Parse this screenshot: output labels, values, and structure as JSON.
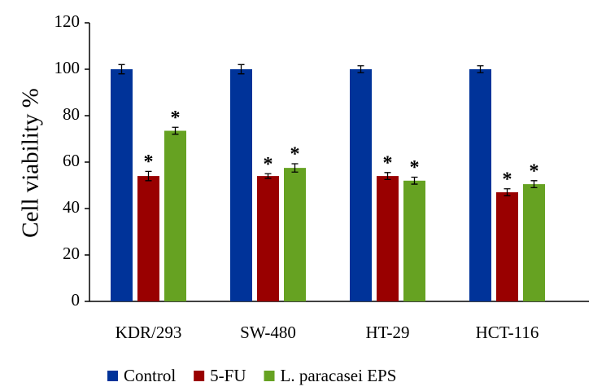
{
  "chart_data": {
    "type": "bar",
    "ylabel": "Cell viability %",
    "categories": [
      "KDR/293",
      "SW-480",
      "HT-29",
      "HCT-116"
    ],
    "series": [
      {
        "name": "Control",
        "color": "#003399",
        "values": [
          100,
          100,
          100,
          100
        ],
        "errors": [
          2,
          2,
          1.5,
          1.5
        ]
      },
      {
        "name": "5-FU",
        "color": "#990000",
        "values": [
          54,
          54,
          54,
          47
        ],
        "errors": [
          2,
          1,
          1.5,
          1.5
        ],
        "annotations": [
          "*",
          "*",
          "*",
          "*"
        ]
      },
      {
        "name": "L. paracasei EPS",
        "color": "#66a222",
        "values": [
          73.5,
          57.5,
          52,
          50.5
        ],
        "errors": [
          1.5,
          1.8,
          1.5,
          1.5
        ],
        "annotations": [
          "*",
          "*",
          "*",
          "*"
        ]
      }
    ],
    "ylim": [
      0,
      120
    ],
    "yticks": [
      0,
      20,
      40,
      60,
      80,
      100,
      120
    ]
  }
}
